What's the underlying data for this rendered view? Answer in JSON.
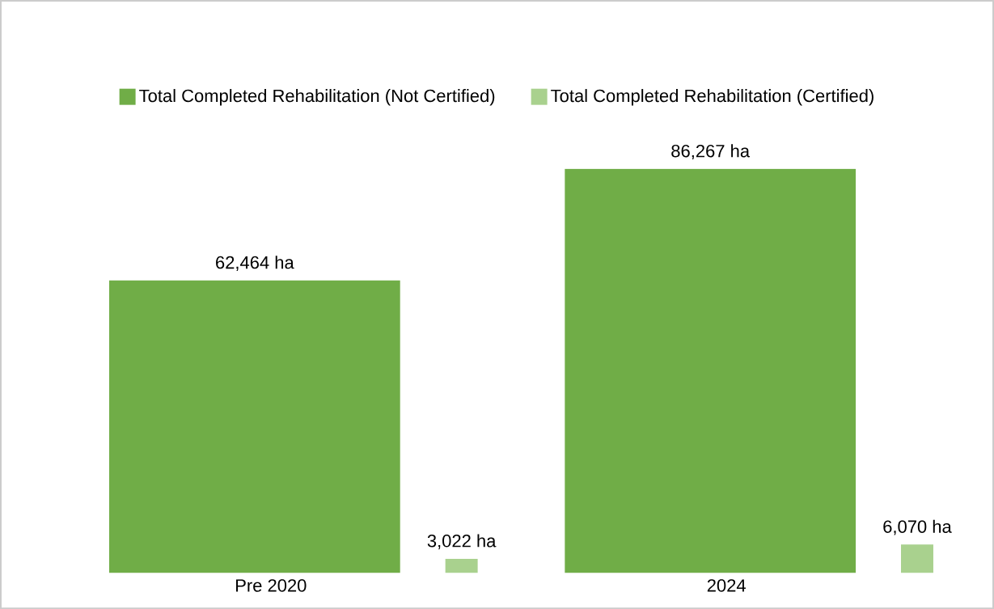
{
  "chart_data": {
    "type": "bar",
    "categories": [
      "Pre 2020",
      "2024"
    ],
    "series": [
      {
        "name": "Total Completed Rehabilitation (Not Certified)",
        "color": "#70ad47",
        "values": [
          62464,
          86267
        ],
        "value_labels": [
          "62,464 ha",
          "86,267 ha"
        ]
      },
      {
        "name": "Total Completed Rehabilitation (Certified)",
        "color": "#a9d18e",
        "values": [
          3022,
          6070
        ],
        "value_labels": [
          "3,022 ha",
          "6,070 ha"
        ]
      }
    ],
    "legend": "top"
  }
}
